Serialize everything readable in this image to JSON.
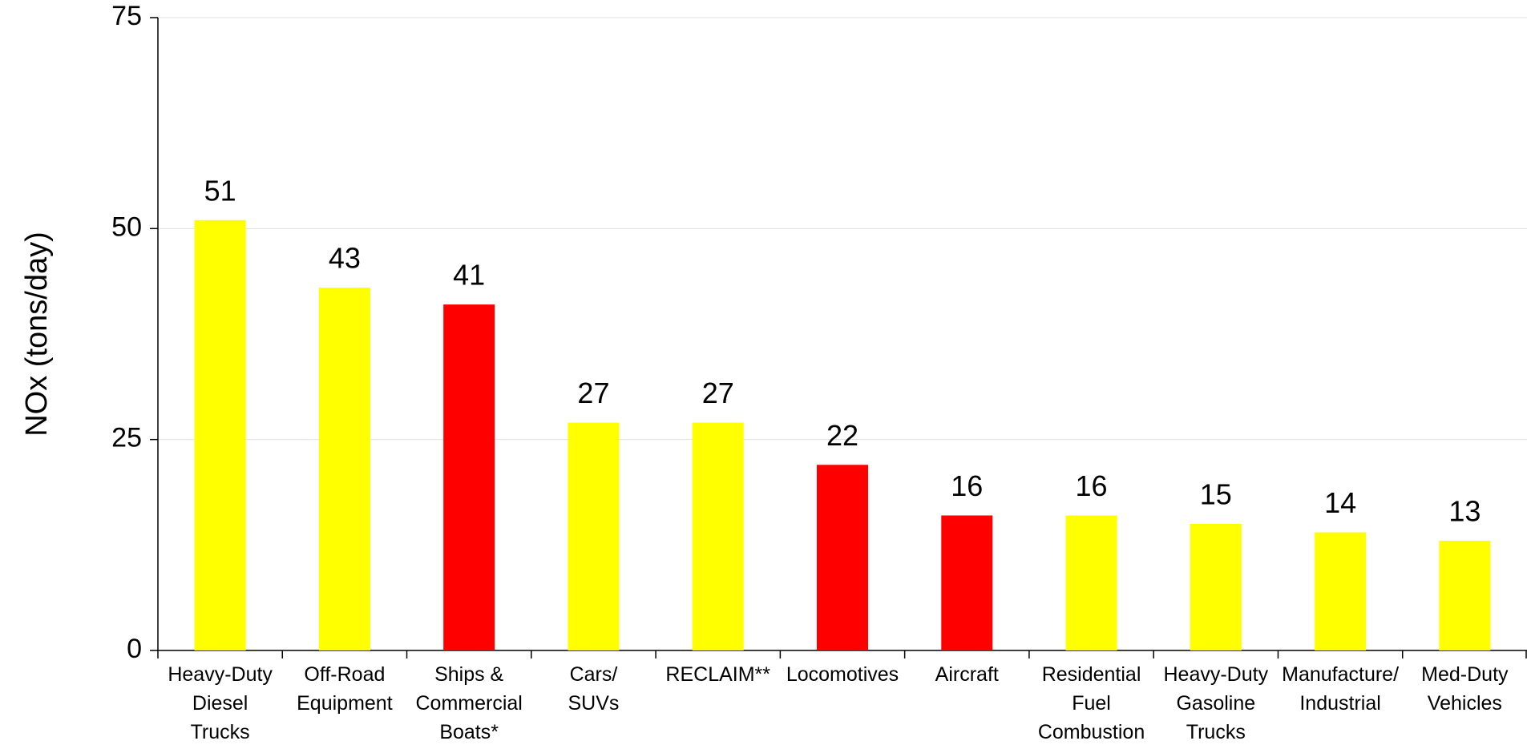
{
  "chart_data": {
    "type": "bar",
    "y_label": "NOx (tons/day)",
    "categories": [
      "Heavy-Duty\nDiesel\nTrucks",
      "Off-Road\nEquipment",
      "Ships &\nCommercial\nBoats*",
      "Cars/\nSUVs",
      "RECLAIM**",
      "Locomotives",
      "Aircraft",
      "Residential\nFuel\nCombustion",
      "Heavy-Duty\nGasoline\nTrucks",
      "Manufacture/\nIndustrial",
      "Med-Duty\nVehicles"
    ],
    "values": [
      51,
      43,
      41,
      27,
      27,
      22,
      16,
      16,
      15,
      14,
      13
    ],
    "colors": [
      "#ffff00",
      "#ffff00",
      "#ff0000",
      "#ffff00",
      "#ffff00",
      "#ff0000",
      "#ff0000",
      "#ffff00",
      "#ffff00",
      "#ffff00",
      "#ffff00"
    ],
    "ylim": [
      0,
      75
    ],
    "yticks": [
      0,
      25,
      50,
      75
    ],
    "grid": true
  }
}
